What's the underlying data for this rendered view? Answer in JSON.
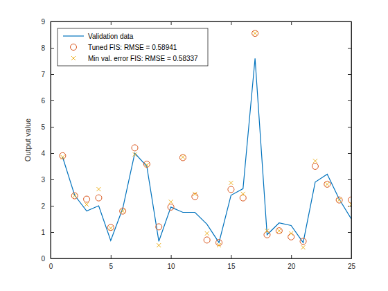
{
  "chart_data": {
    "type": "line",
    "ylabel": "Output value",
    "x": [
      1,
      2,
      3,
      4,
      5,
      6,
      7,
      8,
      9,
      10,
      11,
      12,
      13,
      14,
      15,
      16,
      17,
      18,
      19,
      20,
      21,
      22,
      23,
      24,
      25
    ],
    "series": [
      {
        "name": "Validation data",
        "type": "line",
        "line_style": "solid",
        "color": "#0072bd",
        "values": [
          3.85,
          2.4,
          1.8,
          2.0,
          0.68,
          1.9,
          4.0,
          3.5,
          0.65,
          1.95,
          1.75,
          1.75,
          1.3,
          0.6,
          2.4,
          2.65,
          7.6,
          0.9,
          1.35,
          1.25,
          0.6,
          2.9,
          3.2,
          2.25,
          1.5
        ]
      },
      {
        "name": "Tuned FIS: RMSE = 0.58941",
        "type": "scatter",
        "marker": "o",
        "color": "#d95319",
        "values": [
          3.9,
          2.38,
          2.25,
          2.3,
          1.18,
          1.8,
          4.2,
          3.58,
          1.2,
          1.95,
          3.83,
          2.35,
          0.7,
          0.6,
          2.62,
          2.3,
          8.55,
          0.9,
          1.05,
          0.82,
          0.65,
          3.5,
          2.82,
          2.22,
          2.22
        ]
      },
      {
        "name": "Min val. error FIS: RMSE = 0.58337",
        "type": "scatter",
        "marker": "x",
        "color": "#edb120",
        "values": [
          3.85,
          2.38,
          2.05,
          2.63,
          1.15,
          1.8,
          3.95,
          3.55,
          0.5,
          2.15,
          3.85,
          2.45,
          0.95,
          0.5,
          2.87,
          2.45,
          8.55,
          1.05,
          1.05,
          0.95,
          0.42,
          3.7,
          2.82,
          2.22,
          2.05
        ]
      }
    ],
    "xlim": [
      0,
      25
    ],
    "xticks": [
      0,
      5,
      10,
      15,
      20,
      25
    ],
    "ylim": [
      0,
      9
    ],
    "yticks": [
      0,
      1,
      2,
      3,
      4,
      5,
      6,
      7,
      8,
      9
    ],
    "grid": false,
    "legend": "northwest"
  }
}
